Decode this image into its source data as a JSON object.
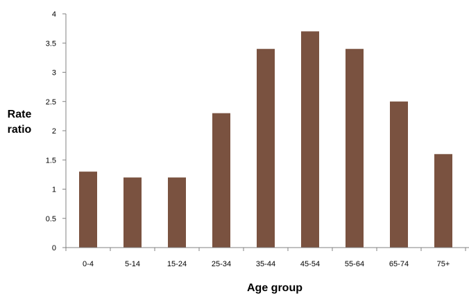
{
  "chart_data": {
    "type": "bar",
    "categories": [
      "0-4",
      "5-14",
      "15-24",
      "25-34",
      "35-44",
      "45-54",
      "55-64",
      "65-74",
      "75+"
    ],
    "values": [
      1.3,
      1.2,
      1.2,
      2.3,
      3.4,
      3.7,
      3.4,
      2.5,
      1.6
    ],
    "title": "",
    "xlabel": "Age group",
    "ylabel": [
      "Rate",
      "ratio"
    ],
    "ylim": [
      0,
      4
    ],
    "yticks": [
      "0",
      "0.5",
      "1",
      "1.5",
      "2",
      "2.5",
      "3",
      "3.5",
      "4"
    ],
    "grid": false,
    "legend": "none",
    "colors": {
      "bar": "#7a5240",
      "axis": "#808080"
    }
  }
}
